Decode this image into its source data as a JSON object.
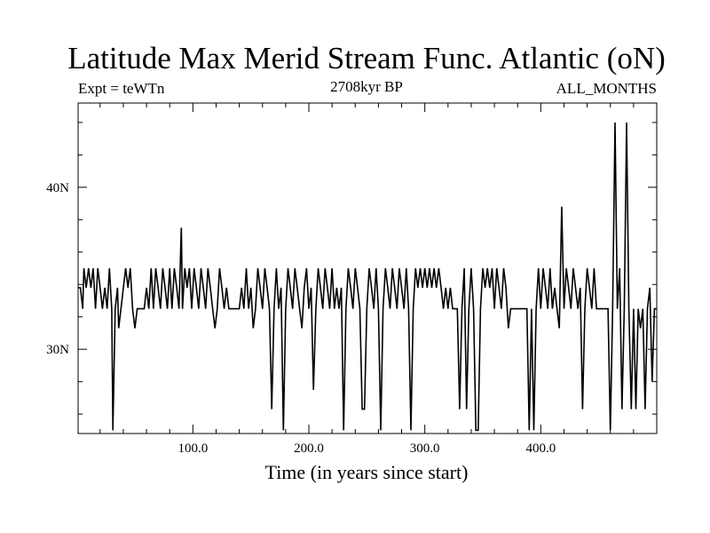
{
  "chart_data": {
    "type": "line",
    "title": "Latitude Max Merid Stream Func. Atlantic (oN)",
    "subtitle": "2708kyr BP",
    "left_label": "Expt = teWTn",
    "right_label": "ALL_MONTHS",
    "xlabel": "Time (in years since start)",
    "ylabel": "",
    "xlim": [
      1,
      500
    ],
    "ylim": [
      24.8,
      45.2
    ],
    "x_ticks": [
      100,
      200,
      300,
      400
    ],
    "x_tick_labels": [
      "100.0",
      "200.0",
      "300.0",
      "400.0"
    ],
    "y_ticks": [
      30,
      40
    ],
    "y_tick_labels": [
      "30N",
      "40N"
    ],
    "grid": false,
    "series": [
      {
        "color": "#000000",
        "points": [
          [
            1,
            33.8
          ],
          [
            3,
            33.8
          ],
          [
            5,
            32.5
          ],
          [
            6,
            35.0
          ],
          [
            8,
            33.8
          ],
          [
            10,
            35.0
          ],
          [
            12,
            33.8
          ],
          [
            14,
            35.0
          ],
          [
            16,
            32.5
          ],
          [
            18,
            35.0
          ],
          [
            20,
            33.8
          ],
          [
            22,
            32.5
          ],
          [
            24,
            33.8
          ],
          [
            26,
            32.5
          ],
          [
            28,
            35.0
          ],
          [
            30,
            32.5
          ],
          [
            31,
            25.0
          ],
          [
            33,
            32.5
          ],
          [
            35,
            33.8
          ],
          [
            36,
            31.3
          ],
          [
            38,
            32.5
          ],
          [
            40,
            33.8
          ],
          [
            42,
            35.0
          ],
          [
            44,
            33.8
          ],
          [
            46,
            35.0
          ],
          [
            48,
            32.5
          ],
          [
            50,
            31.3
          ],
          [
            52,
            32.5
          ],
          [
            55,
            32.5
          ],
          [
            58,
            32.5
          ],
          [
            60,
            33.8
          ],
          [
            62,
            32.5
          ],
          [
            64,
            35.0
          ],
          [
            66,
            32.5
          ],
          [
            68,
            35.0
          ],
          [
            70,
            33.8
          ],
          [
            72,
            32.5
          ],
          [
            74,
            35.0
          ],
          [
            76,
            33.8
          ],
          [
            78,
            32.5
          ],
          [
            80,
            35.0
          ],
          [
            82,
            32.5
          ],
          [
            84,
            35.0
          ],
          [
            86,
            33.8
          ],
          [
            88,
            32.5
          ],
          [
            90,
            37.5
          ],
          [
            91,
            32.5
          ],
          [
            93,
            35.0
          ],
          [
            95,
            33.8
          ],
          [
            97,
            35.0
          ],
          [
            99,
            32.5
          ],
          [
            101,
            35.0
          ],
          [
            103,
            33.8
          ],
          [
            105,
            32.5
          ],
          [
            107,
            35.0
          ],
          [
            109,
            33.8
          ],
          [
            111,
            32.5
          ],
          [
            113,
            35.0
          ],
          [
            115,
            33.8
          ],
          [
            117,
            32.5
          ],
          [
            119,
            31.3
          ],
          [
            121,
            32.5
          ],
          [
            123,
            35.0
          ],
          [
            125,
            33.8
          ],
          [
            127,
            32.5
          ],
          [
            129,
            33.8
          ],
          [
            131,
            32.5
          ],
          [
            134,
            32.5
          ],
          [
            137,
            32.5
          ],
          [
            140,
            32.5
          ],
          [
            142,
            33.8
          ],
          [
            144,
            32.5
          ],
          [
            146,
            35.0
          ],
          [
            148,
            32.5
          ],
          [
            150,
            33.8
          ],
          [
            152,
            31.3
          ],
          [
            154,
            32.5
          ],
          [
            156,
            35.0
          ],
          [
            158,
            33.8
          ],
          [
            160,
            32.5
          ],
          [
            162,
            35.0
          ],
          [
            164,
            33.8
          ],
          [
            166,
            32.5
          ],
          [
            168,
            26.3
          ],
          [
            170,
            32.5
          ],
          [
            172,
            35.0
          ],
          [
            174,
            32.5
          ],
          [
            176,
            33.8
          ],
          [
            178,
            25.0
          ],
          [
            180,
            32.5
          ],
          [
            182,
            35.0
          ],
          [
            184,
            33.8
          ],
          [
            186,
            32.5
          ],
          [
            188,
            35.0
          ],
          [
            190,
            33.8
          ],
          [
            192,
            32.5
          ],
          [
            194,
            31.3
          ],
          [
            196,
            33.8
          ],
          [
            198,
            35.0
          ],
          [
            200,
            32.5
          ],
          [
            202,
            33.8
          ],
          [
            204,
            27.5
          ],
          [
            206,
            32.5
          ],
          [
            208,
            35.0
          ],
          [
            210,
            33.8
          ],
          [
            212,
            32.5
          ],
          [
            214,
            35.0
          ],
          [
            216,
            33.8
          ],
          [
            218,
            32.5
          ],
          [
            220,
            35.0
          ],
          [
            222,
            32.5
          ],
          [
            224,
            33.8
          ],
          [
            226,
            32.5
          ],
          [
            228,
            33.8
          ],
          [
            230,
            25.0
          ],
          [
            232,
            32.5
          ],
          [
            234,
            35.0
          ],
          [
            236,
            33.8
          ],
          [
            238,
            32.5
          ],
          [
            240,
            35.0
          ],
          [
            242,
            33.8
          ],
          [
            244,
            32.5
          ],
          [
            246,
            26.3
          ],
          [
            248,
            26.3
          ],
          [
            250,
            32.5
          ],
          [
            252,
            35.0
          ],
          [
            254,
            33.8
          ],
          [
            256,
            32.5
          ],
          [
            258,
            35.0
          ],
          [
            260,
            32.5
          ],
          [
            262,
            25.0
          ],
          [
            264,
            32.5
          ],
          [
            266,
            35.0
          ],
          [
            268,
            33.8
          ],
          [
            270,
            32.5
          ],
          [
            272,
            35.0
          ],
          [
            274,
            33.8
          ],
          [
            276,
            32.5
          ],
          [
            278,
            35.0
          ],
          [
            280,
            33.8
          ],
          [
            282,
            32.5
          ],
          [
            284,
            35.0
          ],
          [
            286,
            32.5
          ],
          [
            288,
            25.0
          ],
          [
            290,
            32.5
          ],
          [
            292,
            35.0
          ],
          [
            294,
            33.8
          ],
          [
            296,
            35.0
          ],
          [
            298,
            33.8
          ],
          [
            300,
            35.0
          ],
          [
            302,
            33.8
          ],
          [
            304,
            35.0
          ],
          [
            306,
            33.8
          ],
          [
            308,
            35.0
          ],
          [
            310,
            33.8
          ],
          [
            312,
            35.0
          ],
          [
            314,
            33.8
          ],
          [
            316,
            32.5
          ],
          [
            318,
            33.8
          ],
          [
            320,
            32.5
          ],
          [
            322,
            33.8
          ],
          [
            324,
            32.5
          ],
          [
            326,
            32.5
          ],
          [
            328,
            32.5
          ],
          [
            330,
            26.3
          ],
          [
            332,
            32.5
          ],
          [
            334,
            35.0
          ],
          [
            336,
            26.3
          ],
          [
            338,
            32.5
          ],
          [
            340,
            35.0
          ],
          [
            342,
            32.5
          ],
          [
            344,
            25.0
          ],
          [
            346,
            25.0
          ],
          [
            348,
            32.5
          ],
          [
            350,
            35.0
          ],
          [
            352,
            33.8
          ],
          [
            354,
            35.0
          ],
          [
            356,
            33.8
          ],
          [
            358,
            35.0
          ],
          [
            360,
            32.5
          ],
          [
            362,
            35.0
          ],
          [
            364,
            33.8
          ],
          [
            366,
            32.5
          ],
          [
            368,
            35.0
          ],
          [
            370,
            33.8
          ],
          [
            372,
            31.3
          ],
          [
            374,
            32.5
          ],
          [
            376,
            32.5
          ],
          [
            379,
            32.5
          ],
          [
            382,
            32.5
          ],
          [
            385,
            32.5
          ],
          [
            388,
            32.5
          ],
          [
            390,
            25.0
          ],
          [
            392,
            32.5
          ],
          [
            394,
            25.0
          ],
          [
            396,
            32.5
          ],
          [
            398,
            35.0
          ],
          [
            400,
            32.5
          ],
          [
            402,
            35.0
          ],
          [
            404,
            33.8
          ],
          [
            406,
            32.5
          ],
          [
            408,
            35.0
          ],
          [
            410,
            32.5
          ],
          [
            412,
            33.8
          ],
          [
            414,
            32.5
          ],
          [
            416,
            31.3
          ],
          [
            418,
            38.8
          ],
          [
            420,
            32.5
          ],
          [
            422,
            35.0
          ],
          [
            424,
            33.8
          ],
          [
            426,
            32.5
          ],
          [
            428,
            35.0
          ],
          [
            430,
            33.8
          ],
          [
            432,
            32.5
          ],
          [
            434,
            33.8
          ],
          [
            436,
            26.3
          ],
          [
            438,
            32.5
          ],
          [
            440,
            35.0
          ],
          [
            442,
            33.8
          ],
          [
            444,
            32.5
          ],
          [
            446,
            35.0
          ],
          [
            448,
            32.5
          ],
          [
            450,
            32.5
          ],
          [
            452,
            32.5
          ],
          [
            455,
            32.5
          ],
          [
            458,
            32.5
          ],
          [
            460,
            25.0
          ],
          [
            462,
            32.5
          ],
          [
            464,
            44.0
          ],
          [
            466,
            32.5
          ],
          [
            468,
            35.0
          ],
          [
            470,
            26.3
          ],
          [
            472,
            32.5
          ],
          [
            474,
            44.0
          ],
          [
            476,
            32.5
          ],
          [
            478,
            26.3
          ],
          [
            480,
            32.5
          ],
          [
            482,
            26.3
          ],
          [
            484,
            32.5
          ],
          [
            486,
            31.3
          ],
          [
            488,
            32.5
          ],
          [
            490,
            26.3
          ],
          [
            492,
            32.5
          ],
          [
            494,
            33.8
          ],
          [
            496,
            28.0
          ],
          [
            498,
            32.5
          ],
          [
            500,
            32.5
          ]
        ]
      }
    ]
  }
}
